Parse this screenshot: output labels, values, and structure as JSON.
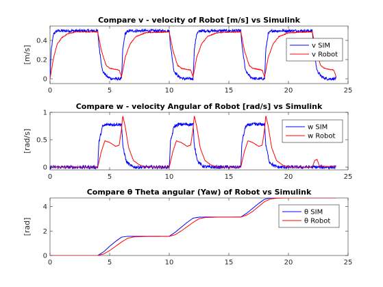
{
  "chart_data": [
    {
      "type": "line",
      "title": "Compare v - velocity of Robot [m/s] vs Simulink",
      "xlabel": "",
      "ylabel": "[m/s]",
      "xlim": [
        0,
        25
      ],
      "ylim": [
        -0.05,
        0.55
      ],
      "xticks": [
        0,
        5,
        10,
        15,
        20,
        25
      ],
      "yticks": [
        0,
        0.2,
        0.4
      ],
      "xtick_labels": [
        "0",
        "5",
        "10",
        "15",
        "20",
        "25"
      ],
      "ytick_labels": [
        "0",
        "0.2",
        "0.4"
      ],
      "legend_position": "right",
      "series": [
        {
          "name": "v SIM",
          "color": "#0000ff",
          "x": [
            0,
            0.1,
            0.3,
            0.6,
            1.0,
            4.0,
            4.1,
            4.4,
            4.8,
            5.2,
            6.0,
            6.1,
            6.3,
            6.6,
            7.0,
            10.0,
            10.1,
            10.4,
            10.8,
            11.2,
            12.0,
            12.1,
            12.3,
            12.6,
            13.0,
            16.0,
            16.1,
            16.4,
            16.8,
            17.2,
            18.0,
            18.1,
            18.3,
            18.6,
            19.0,
            22.0,
            22.1,
            22.4,
            22.8,
            23.2,
            24.0
          ],
          "y": [
            0,
            0.3,
            0.47,
            0.5,
            0.5,
            0.5,
            0.35,
            0.08,
            0.02,
            0.0,
            0.0,
            0.3,
            0.47,
            0.5,
            0.5,
            0.5,
            0.35,
            0.08,
            0.02,
            0.0,
            0.0,
            0.3,
            0.47,
            0.5,
            0.5,
            0.5,
            0.35,
            0.08,
            0.02,
            0.0,
            0.0,
            0.3,
            0.47,
            0.5,
            0.5,
            0.5,
            0.35,
            0.08,
            0.02,
            0.0,
            0.0
          ],
          "noise": 0.015
        },
        {
          "name": "v Robot",
          "color": "#ff0000",
          "x": [
            0,
            0.3,
            0.6,
            1.0,
            1.5,
            2.2,
            4.0,
            4.3,
            4.7,
            5.0,
            5.8,
            6.0,
            6.3,
            6.7,
            7.2,
            8.0,
            10.0,
            10.3,
            10.7,
            11.0,
            11.8,
            12.0,
            12.3,
            12.7,
            13.2,
            14.0,
            16.0,
            16.3,
            16.7,
            17.0,
            17.8,
            18.0,
            18.3,
            18.7,
            19.2,
            20.0,
            22.0,
            22.3,
            22.7,
            23.0,
            23.8,
            24.0
          ],
          "y": [
            0,
            0.22,
            0.36,
            0.43,
            0.47,
            0.49,
            0.49,
            0.3,
            0.14,
            0.11,
            0.09,
            0.02,
            0.22,
            0.36,
            0.44,
            0.48,
            0.49,
            0.3,
            0.14,
            0.11,
            0.09,
            0.02,
            0.22,
            0.36,
            0.44,
            0.48,
            0.49,
            0.3,
            0.14,
            0.11,
            0.09,
            0.02,
            0.22,
            0.36,
            0.44,
            0.48,
            0.49,
            0.3,
            0.14,
            0.11,
            0.09,
            0.02
          ],
          "noise": 0.004
        }
      ]
    },
    {
      "type": "line",
      "title": "Compare w - velocity Angular of Robot [rad/s] vs Simulink",
      "xlabel": "",
      "ylabel": "[rad/s]",
      "xlim": [
        0,
        25
      ],
      "ylim": [
        -0.05,
        1.0
      ],
      "xticks": [
        0,
        5,
        10,
        15,
        20,
        25
      ],
      "yticks": [
        0,
        0.5,
        1
      ],
      "xtick_labels": [
        "0",
        "5",
        "10",
        "15",
        "20",
        "25"
      ],
      "ytick_labels": [
        "0",
        "0.5",
        "1"
      ],
      "legend_position": "right",
      "series": [
        {
          "name": "w SIM",
          "color": "#0000ff",
          "x": [
            0,
            4.0,
            4.1,
            4.4,
            4.8,
            6.0,
            6.1,
            6.4,
            6.8,
            7.2,
            10.0,
            10.1,
            10.4,
            10.8,
            12.0,
            12.1,
            12.4,
            12.8,
            13.2,
            16.0,
            16.1,
            16.4,
            16.8,
            18.0,
            18.1,
            18.4,
            18.8,
            19.2,
            24.0
          ],
          "y": [
            0.0,
            0.0,
            0.45,
            0.74,
            0.78,
            0.78,
            0.4,
            0.1,
            0.02,
            0.0,
            0.0,
            0.45,
            0.74,
            0.78,
            0.78,
            0.4,
            0.1,
            0.02,
            0.0,
            0.0,
            0.45,
            0.74,
            0.78,
            0.78,
            0.4,
            0.1,
            0.02,
            0.0,
            0.0
          ],
          "noise": 0.03
        },
        {
          "name": "w Robot",
          "color": "#ff0000",
          "x": [
            0,
            4.0,
            4.3,
            4.6,
            5.0,
            5.5,
            5.8,
            6.0,
            6.1,
            6.3,
            6.6,
            7.0,
            7.5,
            8.0,
            10.0,
            10.3,
            10.6,
            11.0,
            11.5,
            11.8,
            12.0,
            12.1,
            12.3,
            12.6,
            13.0,
            13.5,
            14.0,
            16.0,
            16.3,
            16.6,
            17.0,
            17.5,
            17.8,
            18.0,
            18.1,
            18.3,
            18.6,
            19.0,
            19.5,
            20.0,
            22.0,
            22.2,
            22.4,
            22.6,
            24.0
          ],
          "y": [
            0.0,
            0.0,
            0.28,
            0.48,
            0.45,
            0.38,
            0.4,
            0.7,
            0.94,
            0.75,
            0.35,
            0.12,
            0.04,
            0.0,
            0.0,
            0.28,
            0.48,
            0.45,
            0.38,
            0.4,
            0.7,
            0.94,
            0.75,
            0.35,
            0.12,
            0.04,
            0.0,
            0.0,
            0.28,
            0.48,
            0.45,
            0.38,
            0.4,
            0.7,
            0.94,
            0.75,
            0.35,
            0.12,
            0.04,
            0.0,
            0.0,
            0.12,
            0.14,
            0.02,
            0.0
          ],
          "noise": 0.003
        }
      ]
    },
    {
      "type": "line",
      "title": "Compare θ Theta angular (Yaw) of Robot vs Simulink",
      "xlabel": "",
      "ylabel": "[rad]",
      "xlim": [
        0,
        25
      ],
      "ylim": [
        0,
        4.7
      ],
      "xticks": [
        0,
        5,
        10,
        15,
        20,
        25
      ],
      "yticks": [
        0,
        2,
        4
      ],
      "xtick_labels": [
        "0",
        "5",
        "10",
        "15",
        "20",
        "25"
      ],
      "ytick_labels": [
        "0",
        "2",
        "4"
      ],
      "legend_position": "right",
      "series": [
        {
          "name": "θ SIM",
          "color": "#0000ff",
          "x": [
            0,
            4.0,
            4.5,
            5.0,
            5.5,
            6.0,
            6.5,
            7.0,
            10.0,
            10.5,
            11.0,
            11.5,
            12.0,
            12.5,
            13.0,
            16.0,
            16.5,
            17.0,
            17.5,
            18.0,
            18.5,
            19.0,
            24.0
          ],
          "y": [
            0,
            0,
            0.3,
            0.75,
            1.15,
            1.5,
            1.57,
            1.57,
            1.57,
            1.9,
            2.3,
            2.7,
            3.05,
            3.13,
            3.14,
            3.14,
            3.45,
            3.85,
            4.25,
            4.6,
            4.69,
            4.71,
            4.71
          ]
        },
        {
          "name": "θ Robot",
          "color": "#ff0000",
          "x": [
            0,
            4.0,
            4.5,
            5.0,
            5.5,
            6.0,
            6.5,
            7.0,
            8.0,
            10.0,
            10.5,
            11.0,
            11.5,
            12.0,
            12.5,
            13.0,
            14.0,
            16.0,
            16.5,
            17.0,
            17.5,
            18.0,
            18.5,
            19.0,
            20.0,
            24.0
          ],
          "y": [
            0,
            0,
            0.12,
            0.4,
            0.75,
            1.1,
            1.4,
            1.52,
            1.55,
            1.56,
            1.7,
            2.0,
            2.35,
            2.7,
            3.0,
            3.1,
            3.13,
            3.14,
            3.3,
            3.6,
            4.0,
            4.4,
            4.62,
            4.68,
            4.7,
            4.71
          ]
        }
      ]
    }
  ]
}
